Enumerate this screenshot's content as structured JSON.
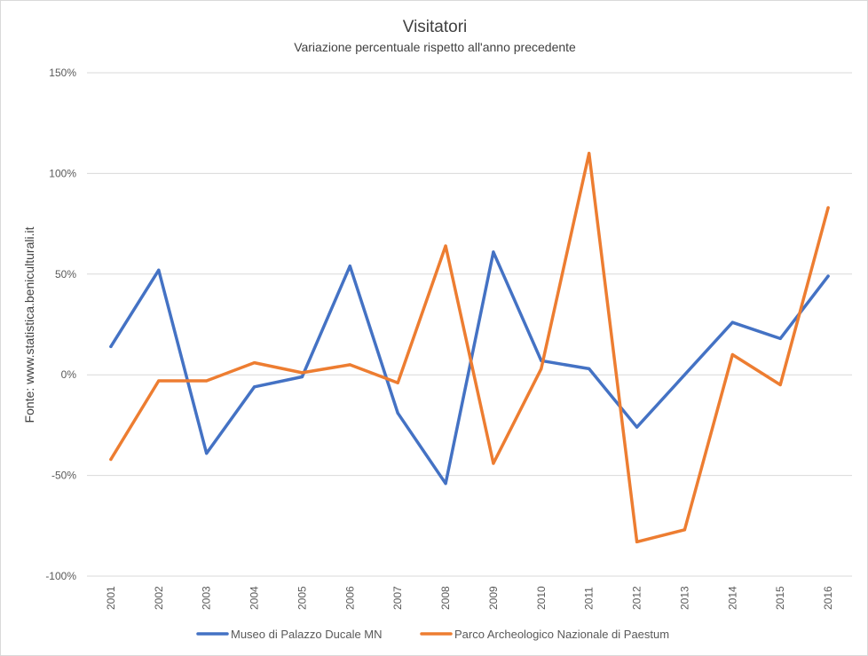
{
  "chart_data": {
    "type": "line",
    "title": "Visitatori",
    "subtitle": "Variazione percentuale rispetto all'anno precedente",
    "ylabel": "Fonte: www.statistica.beniculturali.it",
    "xlabel": "",
    "categories": [
      "2001",
      "2002",
      "2003",
      "2004",
      "2005",
      "2006",
      "2007",
      "2008",
      "2009",
      "2010",
      "2011",
      "2012",
      "2013",
      "2014",
      "2015",
      "2016"
    ],
    "ylim": [
      -100,
      150
    ],
    "ytick_values": [
      -100,
      -50,
      0,
      50,
      100,
      150
    ],
    "ytick_labels": [
      "-100%",
      "-50%",
      "0%",
      "50%",
      "100%",
      "150%"
    ],
    "grid": true,
    "legend_position": "bottom",
    "series": [
      {
        "name": "Museo di Palazzo Ducale MN",
        "color": "#4472C4",
        "values": [
          14,
          52,
          -39,
          -6,
          -1,
          54,
          -19,
          -54,
          61,
          7,
          3,
          -26,
          0,
          26,
          18,
          49
        ]
      },
      {
        "name": "Parco Archeologico Nazionale di Paestum",
        "color": "#ED7D31",
        "values": [
          -42,
          -3,
          -3,
          6,
          1,
          5,
          -4,
          64,
          -44,
          3,
          110,
          -83,
          -77,
          10,
          -5,
          83
        ]
      }
    ]
  }
}
